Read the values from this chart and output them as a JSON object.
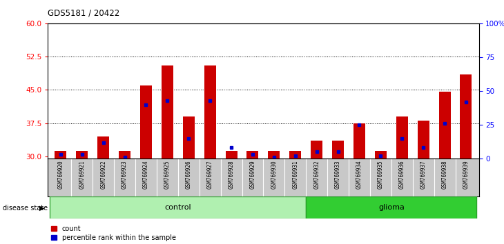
{
  "title": "GDS5181 / 20422",
  "samples": [
    "GSM769920",
    "GSM769921",
    "GSM769922",
    "GSM769923",
    "GSM769924",
    "GSM769925",
    "GSM769926",
    "GSM769927",
    "GSM769928",
    "GSM769929",
    "GSM769930",
    "GSM769931",
    "GSM769932",
    "GSM769933",
    "GSM769934",
    "GSM769935",
    "GSM769936",
    "GSM769937",
    "GSM769938",
    "GSM769939"
  ],
  "red_counts": [
    31.2,
    31.2,
    34.5,
    31.2,
    46.0,
    50.5,
    39.0,
    50.5,
    31.2,
    31.2,
    31.2,
    31.2,
    33.5,
    33.5,
    37.5,
    31.2,
    39.0,
    38.0,
    44.5,
    48.5
  ],
  "blue_pct": [
    3,
    3,
    12,
    1,
    40,
    43,
    15,
    43,
    8,
    3,
    1,
    2,
    5,
    5,
    25,
    2,
    15,
    8,
    26,
    42
  ],
  "ylim_left": [
    29.5,
    60
  ],
  "ylim_right": [
    0,
    100
  ],
  "yticks_left": [
    30,
    37.5,
    45,
    52.5,
    60
  ],
  "yticks_right": [
    0,
    25,
    50,
    75,
    100
  ],
  "hlines": [
    37.5,
    45,
    52.5
  ],
  "bar_color": "#cc0000",
  "blue_color": "#0000cc",
  "bg_gray": "#c8c8c8",
  "control_color_light": "#b0f0b0",
  "control_color_dark": "#50c850",
  "glioma_color": "#32cd32",
  "legend_count": "count",
  "legend_pct": "percentile rank within the sample"
}
